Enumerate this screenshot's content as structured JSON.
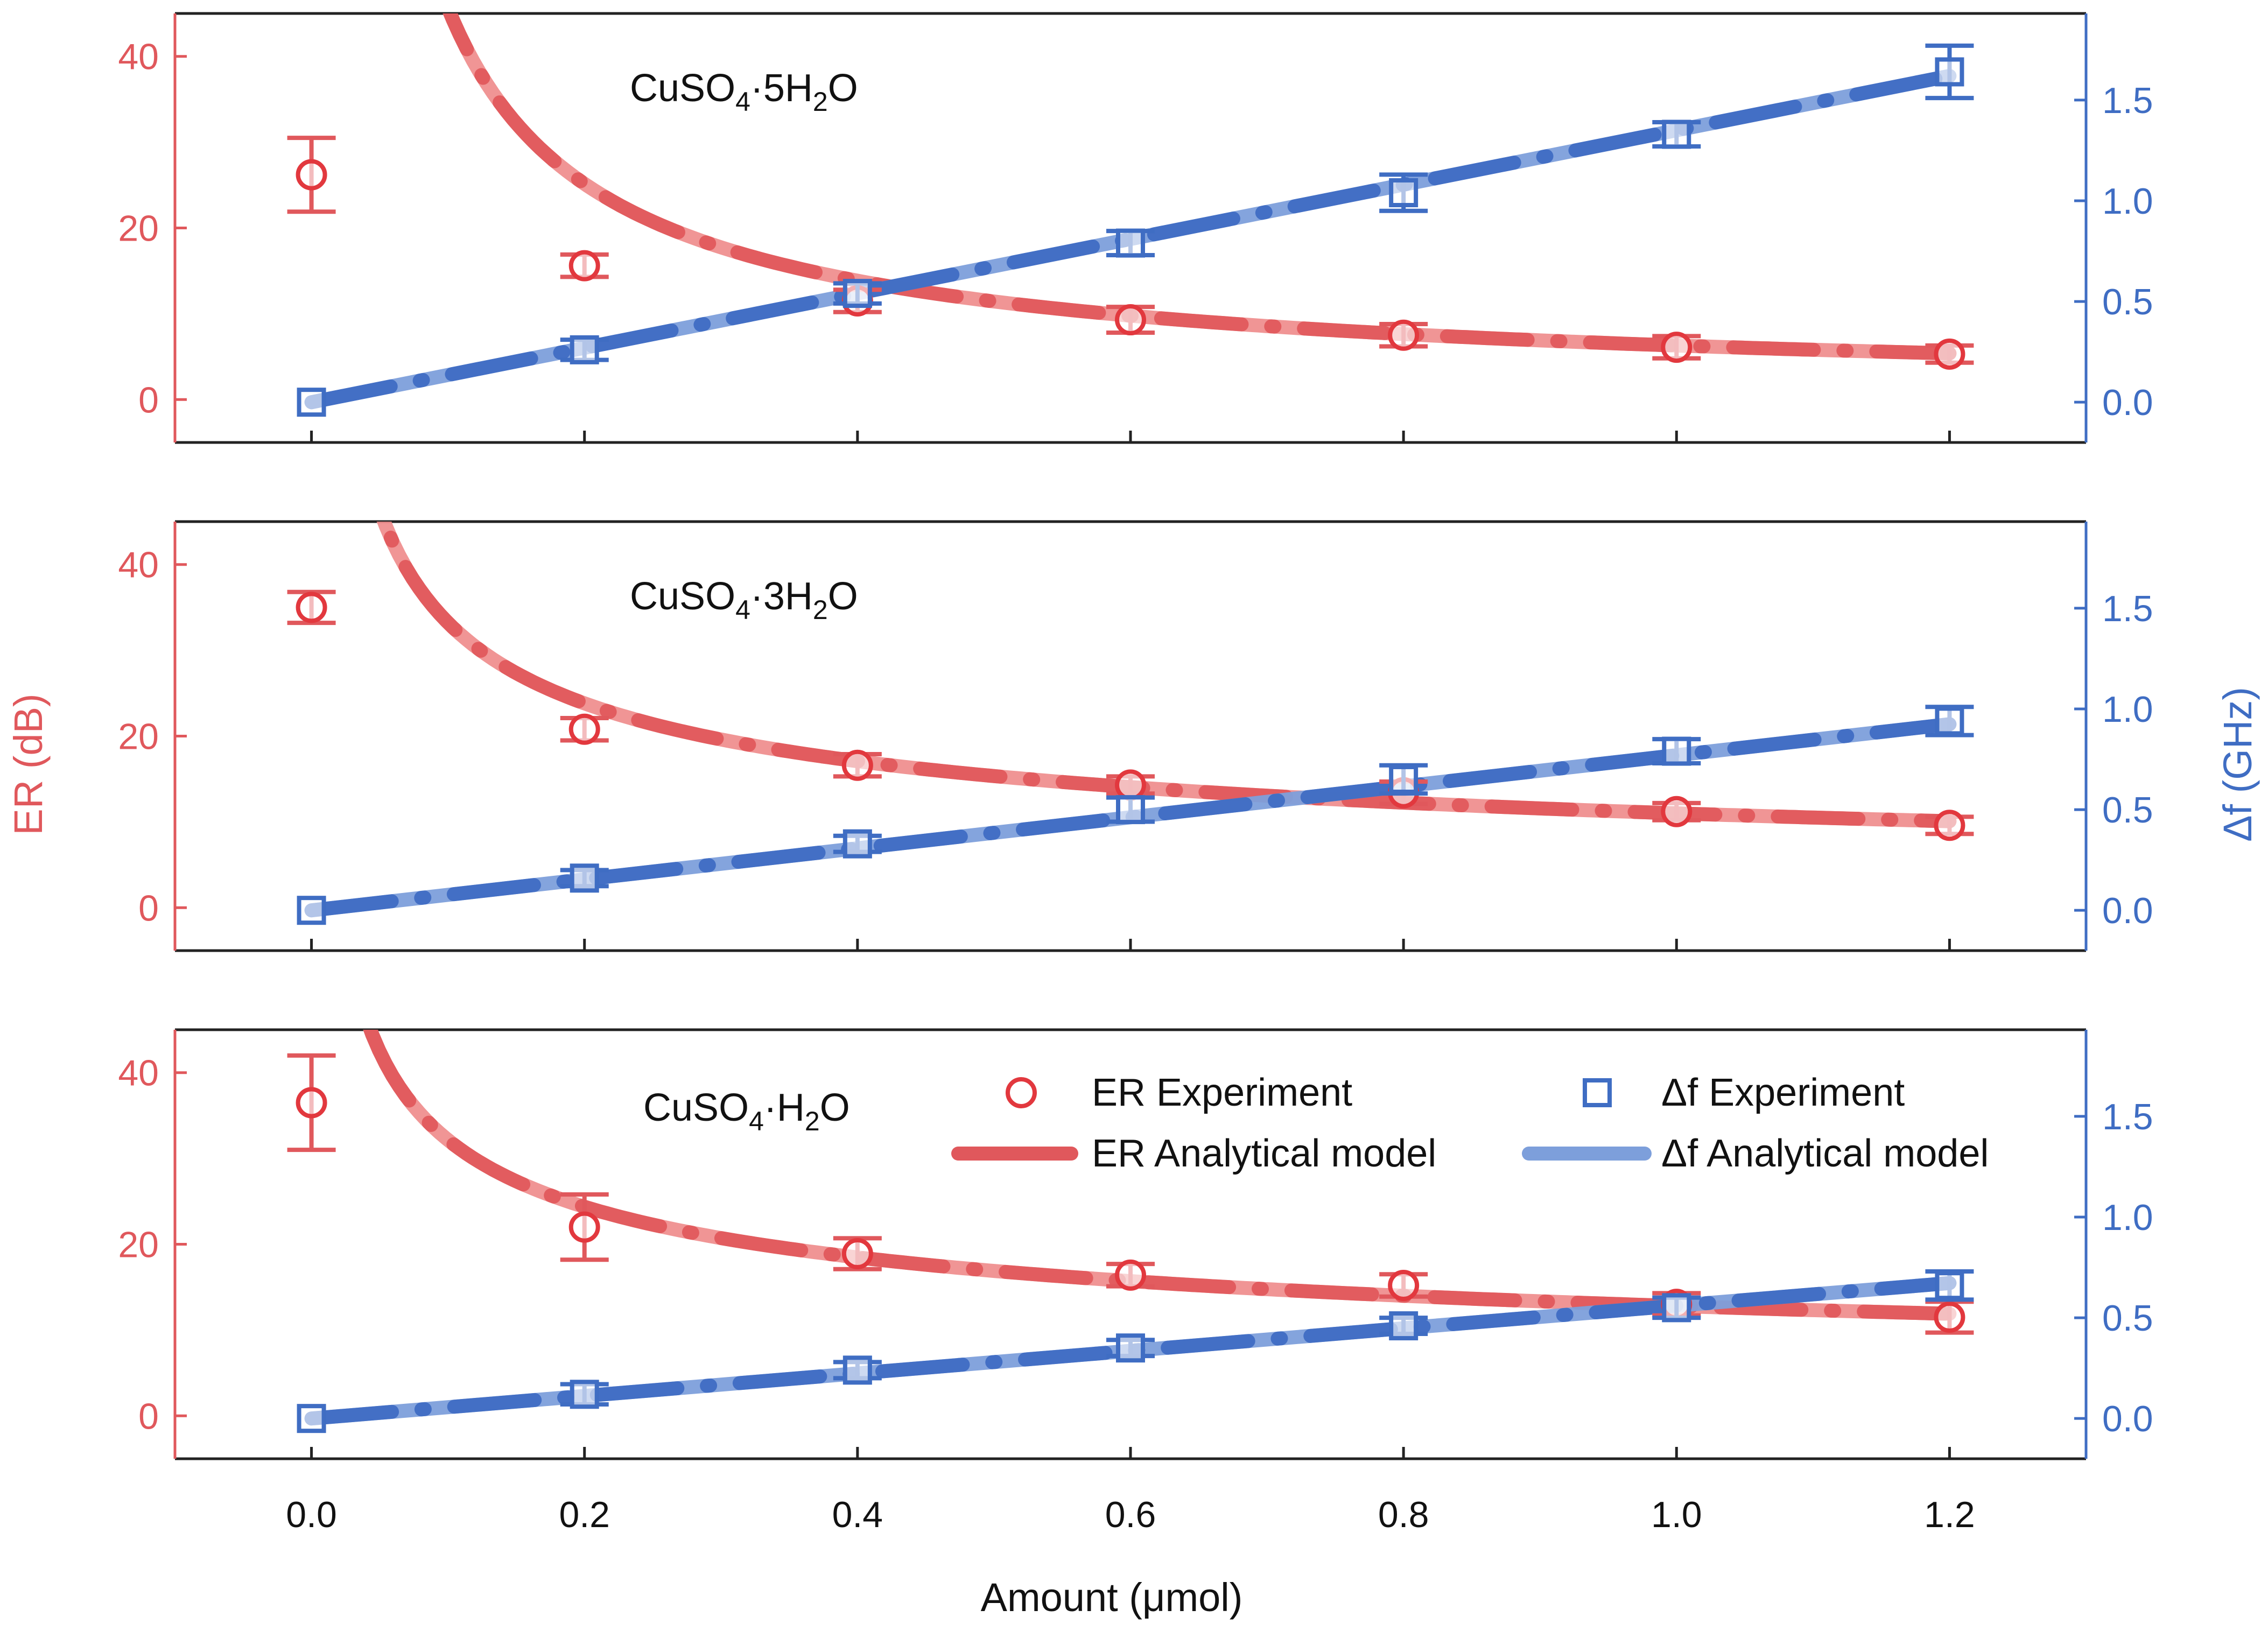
{
  "colors": {
    "er": "#e0585c",
    "er_light": "#ee8a8a",
    "er_marker": "#e2383e",
    "df": "#3f6dc3",
    "df_light": "#7d9fdb",
    "axes": "#222222"
  },
  "figure": {
    "xlabel": "Amount (μmol)",
    "ylabel_left": "ER (dB)",
    "ylabel_right": "Δf (GHz)"
  },
  "legend": {
    "er_exp": "ER Experiment",
    "er_model": "ER Analytical model",
    "df_exp": "Δf Experiment",
    "df_model": "Δf Analytical model"
  },
  "chart_data": [
    {
      "type": "scatter",
      "title": {
        "base": "CuSO",
        "sub1": "4",
        "dot": "·5H",
        "sub2": "2",
        "end": "O"
      },
      "x": [
        0.0,
        0.2,
        0.4,
        0.6,
        0.8,
        1.0,
        1.2
      ],
      "xlim": [
        -0.1,
        1.3
      ],
      "xticks": [
        "0.0",
        "0.2",
        "0.4",
        "0.6",
        "0.8",
        "1.0",
        "1.2"
      ],
      "ylim_left": [
        -5,
        45
      ],
      "yticks_left": [
        "0",
        "20",
        "40"
      ],
      "ylim_right": [
        -0.2,
        1.93
      ],
      "yticks_right": [
        "0.0",
        "0.5",
        "1.0",
        "1.5"
      ],
      "series": [
        {
          "name": "ER Experiment",
          "axis": "left",
          "values": [
            26.2,
            15.6,
            11.5,
            9.3,
            7.5,
            6.1,
            5.3
          ],
          "errors": [
            4.3,
            1.3,
            1.3,
            1.5,
            1.3,
            1.3,
            1.0
          ]
        },
        {
          "name": "Δf Experiment",
          "axis": "right",
          "values": [
            0.0,
            0.26,
            0.54,
            0.79,
            1.04,
            1.33,
            1.64
          ],
          "errors": [
            0.0,
            0.05,
            0.05,
            0.06,
            0.09,
            0.06,
            0.13
          ]
        },
        {
          "name": "ER Analytical model",
          "axis": "left",
          "coefficient": 6.3,
          "exponent": -0.86,
          "x_range": [
            0.02,
            1.2
          ]
        },
        {
          "name": "Δf Analytical model",
          "axis": "right",
          "slope": 1.35,
          "x_range": [
            0.0,
            1.2
          ]
        }
      ]
    },
    {
      "type": "scatter",
      "title": {
        "base": "CuSO",
        "sub1": "4",
        "dot": "·3H",
        "sub2": "2",
        "end": "O"
      },
      "x": [
        0.0,
        0.2,
        0.4,
        0.6,
        0.8,
        1.0,
        1.2
      ],
      "xlim": [
        -0.1,
        1.3
      ],
      "xticks": [
        "0.0",
        "0.2",
        "0.4",
        "0.6",
        "0.8",
        "1.0",
        "1.2"
      ],
      "ylim_left": [
        -5,
        45
      ],
      "yticks_left": [
        "0",
        "20",
        "40"
      ],
      "ylim_right": [
        -0.2,
        1.93
      ],
      "yticks_right": [
        "0.0",
        "0.5",
        "1.0",
        "1.5"
      ],
      "series": [
        {
          "name": "ER Experiment",
          "axis": "left",
          "values": [
            35.0,
            20.8,
            16.6,
            14.3,
            13.4,
            11.2,
            9.6
          ],
          "errors": [
            1.8,
            1.3,
            1.3,
            1.0,
            1.3,
            1.0,
            1.0
          ]
        },
        {
          "name": "Δf Experiment",
          "axis": "right",
          "values": [
            0.0,
            0.16,
            0.33,
            0.5,
            0.65,
            0.79,
            0.94
          ],
          "errors": [
            0.0,
            0.04,
            0.04,
            0.06,
            0.07,
            0.06,
            0.07
          ]
        },
        {
          "name": "ER Analytical model",
          "axis": "left",
          "coefficient": 11.0,
          "exponent": -0.48,
          "x_range": [
            0.02,
            1.2
          ]
        },
        {
          "name": "Δf Analytical model",
          "axis": "right",
          "slope": 0.77,
          "x_range": [
            0.0,
            1.2
          ]
        }
      ]
    },
    {
      "type": "scatter",
      "title": {
        "base": "CuSO",
        "sub1": "4",
        "dot": "·H",
        "sub2": "2",
        "end": "O"
      },
      "x": [
        0.0,
        0.2,
        0.4,
        0.6,
        0.8,
        1.0,
        1.2
      ],
      "xlim": [
        -0.1,
        1.3
      ],
      "xticks": [
        "0.0",
        "0.2",
        "0.4",
        "0.6",
        "0.8",
        "1.0",
        "1.2"
      ],
      "ylim_left": [
        -5,
        45
      ],
      "yticks_left": [
        "0",
        "20",
        "40"
      ],
      "ylim_right": [
        -0.2,
        1.93
      ],
      "yticks_right": [
        "0.0",
        "0.5",
        "1.0",
        "1.5"
      ],
      "series": [
        {
          "name": "ER Experiment",
          "axis": "left",
          "values": [
            36.5,
            22.0,
            18.9,
            16.4,
            15.2,
            13.0,
            11.5
          ],
          "errors": [
            5.5,
            3.8,
            1.8,
            1.3,
            1.3,
            1.3,
            1.8
          ]
        },
        {
          "name": "Δf Experiment",
          "axis": "right",
          "values": [
            0.0,
            0.12,
            0.24,
            0.35,
            0.46,
            0.55,
            0.66
          ],
          "errors": [
            0.0,
            0.05,
            0.04,
            0.04,
            0.04,
            0.05,
            0.07
          ]
        },
        {
          "name": "ER Analytical model",
          "axis": "left",
          "coefficient": 12.8,
          "exponent": -0.4,
          "x_range": [
            0.02,
            1.2
          ]
        },
        {
          "name": "Δf Analytical model",
          "axis": "right",
          "slope": 0.56,
          "x_range": [
            0.0,
            1.2
          ]
        }
      ]
    }
  ]
}
